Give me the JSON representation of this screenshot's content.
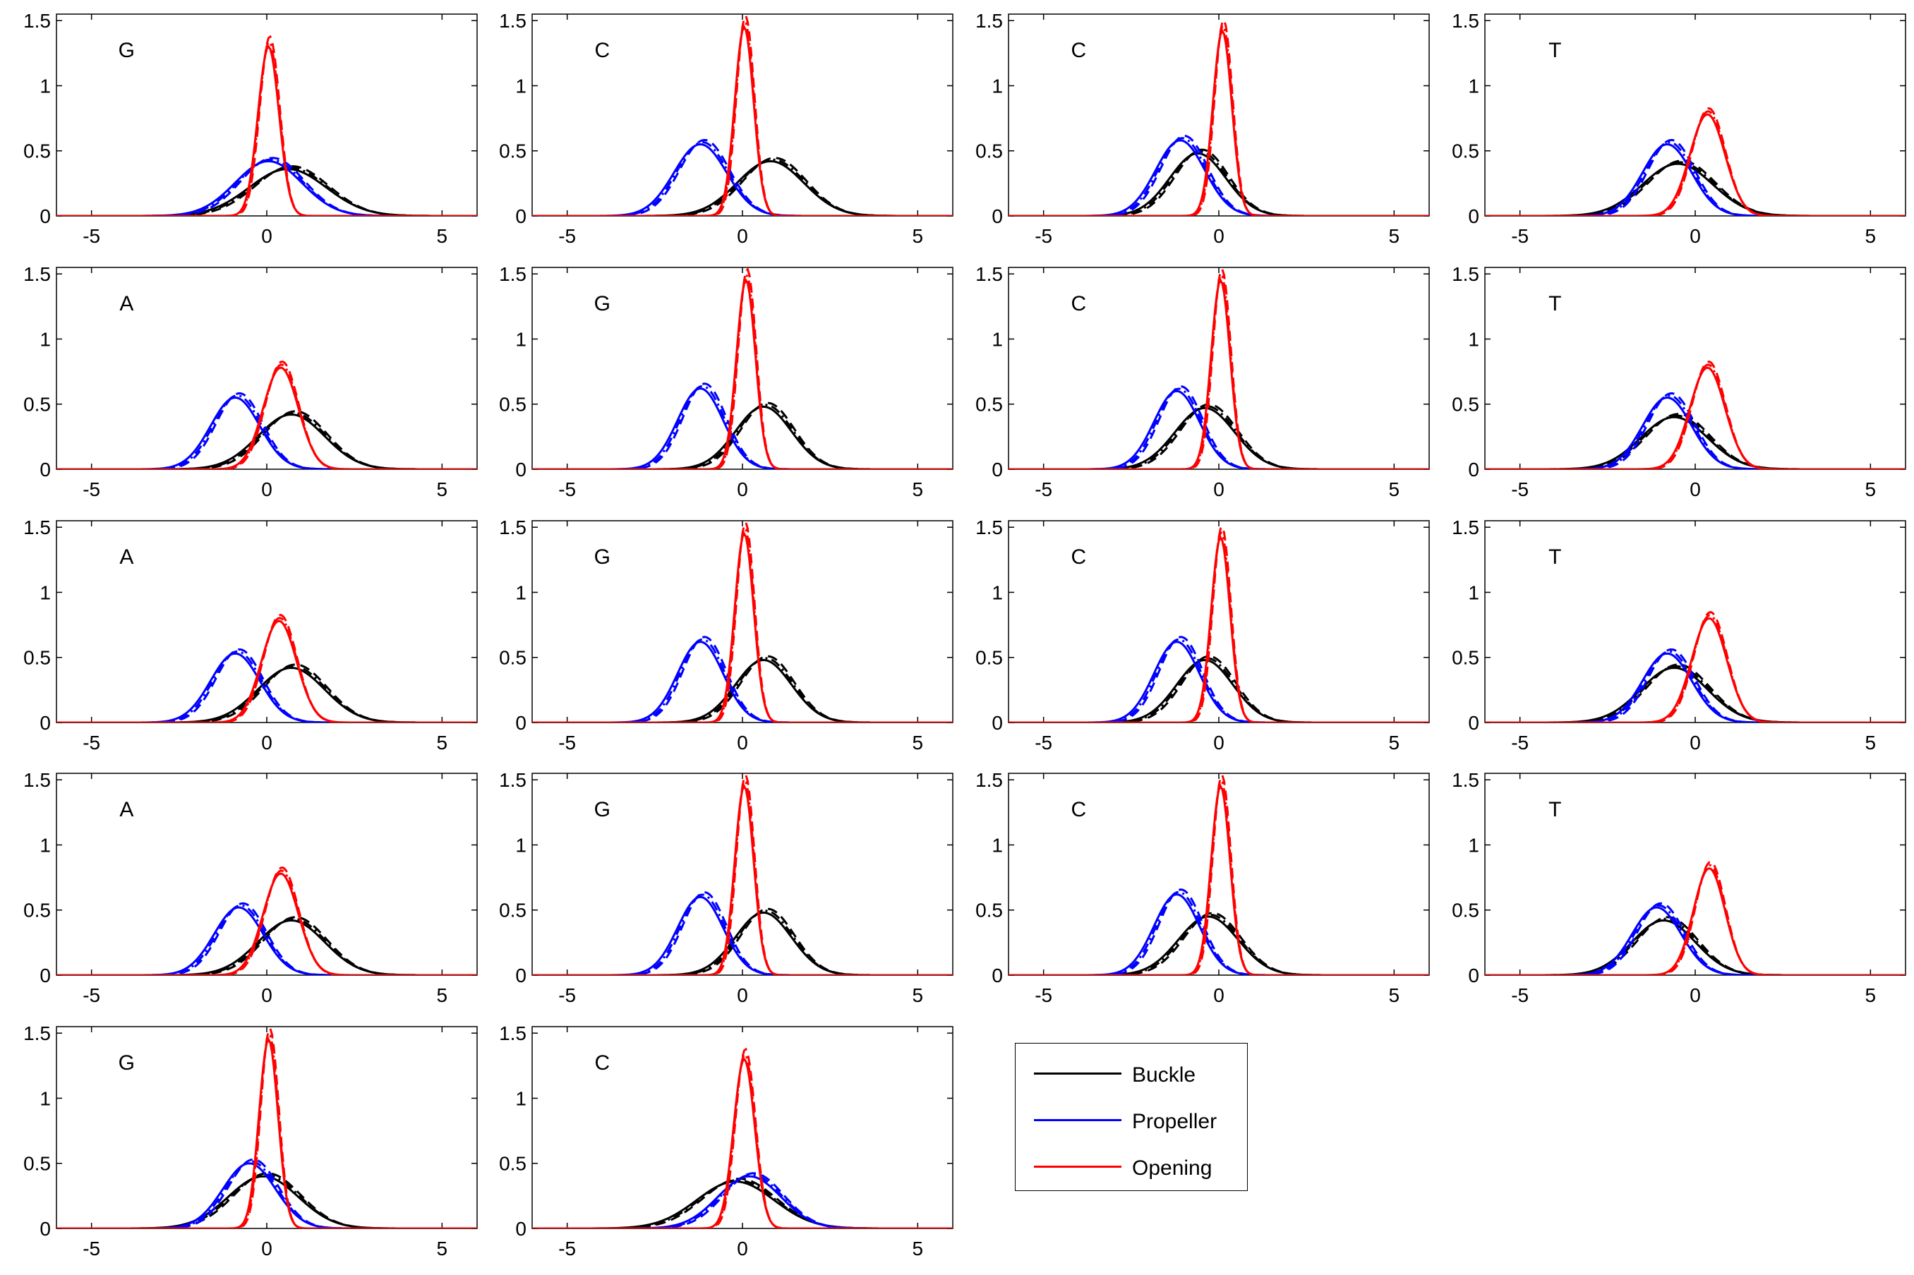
{
  "chart_data": {
    "type": "line",
    "layout": "5x4 grid of small multiples (18 panels) with legend",
    "xlim": [
      -6,
      6
    ],
    "ylim": [
      0,
      1.55
    ],
    "xticks": [
      -5,
      0,
      5
    ],
    "yticks": [
      0,
      0.5,
      1,
      1.5
    ],
    "ytick_labels": [
      "0",
      "0.5",
      "1",
      "1.5"
    ],
    "grid": false,
    "legend": {
      "position": "row 5, column 3",
      "entries": [
        {
          "label": "Buckle",
          "color": "#000000"
        },
        {
          "label": "Propeller",
          "color": "#0000ff"
        },
        {
          "label": "Opening",
          "color": "#ff0000"
        }
      ]
    },
    "series_styles": [
      "solid",
      "dashed",
      "dash-dot"
    ],
    "panels": [
      {
        "label": "G",
        "buckle": {
          "mu": 0.6,
          "sigma": 1.1,
          "peak": 0.36
        },
        "propeller": {
          "mu": 0.05,
          "sigma": 0.95,
          "peak": 0.42
        },
        "opening": {
          "mu": 0.05,
          "sigma": 0.3,
          "peak": 1.3
        }
      },
      {
        "label": "C",
        "buckle": {
          "mu": 0.8,
          "sigma": 0.95,
          "peak": 0.42
        },
        "propeller": {
          "mu": -1.2,
          "sigma": 0.75,
          "peak": 0.55
        },
        "opening": {
          "mu": 0.05,
          "sigma": 0.27,
          "peak": 1.45
        }
      },
      {
        "label": "C",
        "buckle": {
          "mu": -0.6,
          "sigma": 0.8,
          "peak": 0.48
        },
        "propeller": {
          "mu": -1.1,
          "sigma": 0.7,
          "peak": 0.58
        },
        "opening": {
          "mu": 0.1,
          "sigma": 0.27,
          "peak": 1.42
        }
      },
      {
        "label": "T",
        "buckle": {
          "mu": -0.5,
          "sigma": 1.0,
          "peak": 0.4
        },
        "propeller": {
          "mu": -0.8,
          "sigma": 0.7,
          "peak": 0.55
        },
        "opening": {
          "mu": 0.35,
          "sigma": 0.5,
          "peak": 0.78
        }
      },
      {
        "label": "A",
        "buckle": {
          "mu": 0.7,
          "sigma": 0.95,
          "peak": 0.42
        },
        "propeller": {
          "mu": -0.9,
          "sigma": 0.7,
          "peak": 0.55
        },
        "opening": {
          "mu": 0.4,
          "sigma": 0.5,
          "peak": 0.78
        }
      },
      {
        "label": "G",
        "buckle": {
          "mu": 0.6,
          "sigma": 0.8,
          "peak": 0.48
        },
        "propeller": {
          "mu": -1.2,
          "sigma": 0.65,
          "peak": 0.62
        },
        "opening": {
          "mu": 0.1,
          "sigma": 0.27,
          "peak": 1.45
        }
      },
      {
        "label": "C",
        "buckle": {
          "mu": -0.4,
          "sigma": 0.85,
          "peak": 0.47
        },
        "propeller": {
          "mu": -1.2,
          "sigma": 0.65,
          "peak": 0.6
        },
        "opening": {
          "mu": 0.05,
          "sigma": 0.27,
          "peak": 1.45
        }
      },
      {
        "label": "T",
        "buckle": {
          "mu": -0.6,
          "sigma": 0.95,
          "peak": 0.4
        },
        "propeller": {
          "mu": -0.8,
          "sigma": 0.7,
          "peak": 0.55
        },
        "opening": {
          "mu": 0.35,
          "sigma": 0.5,
          "peak": 0.78
        }
      },
      {
        "label": "A",
        "buckle": {
          "mu": 0.7,
          "sigma": 0.95,
          "peak": 0.42
        },
        "propeller": {
          "mu": -0.9,
          "sigma": 0.7,
          "peak": 0.53
        },
        "opening": {
          "mu": 0.35,
          "sigma": 0.5,
          "peak": 0.78
        }
      },
      {
        "label": "G",
        "buckle": {
          "mu": 0.6,
          "sigma": 0.8,
          "peak": 0.48
        },
        "propeller": {
          "mu": -1.2,
          "sigma": 0.65,
          "peak": 0.62
        },
        "opening": {
          "mu": 0.05,
          "sigma": 0.27,
          "peak": 1.45
        }
      },
      {
        "label": "C",
        "buckle": {
          "mu": -0.4,
          "sigma": 0.8,
          "peak": 0.48
        },
        "propeller": {
          "mu": -1.2,
          "sigma": 0.65,
          "peak": 0.62
        },
        "opening": {
          "mu": 0.05,
          "sigma": 0.27,
          "peak": 1.42
        }
      },
      {
        "label": "T",
        "buckle": {
          "mu": -0.6,
          "sigma": 0.95,
          "peak": 0.42
        },
        "propeller": {
          "mu": -0.8,
          "sigma": 0.7,
          "peak": 0.53
        },
        "opening": {
          "mu": 0.4,
          "sigma": 0.5,
          "peak": 0.8
        }
      },
      {
        "label": "A",
        "buckle": {
          "mu": 0.7,
          "sigma": 0.95,
          "peak": 0.42
        },
        "propeller": {
          "mu": -0.8,
          "sigma": 0.7,
          "peak": 0.52
        },
        "opening": {
          "mu": 0.4,
          "sigma": 0.5,
          "peak": 0.78
        }
      },
      {
        "label": "G",
        "buckle": {
          "mu": 0.6,
          "sigma": 0.8,
          "peak": 0.48
        },
        "propeller": {
          "mu": -1.2,
          "sigma": 0.65,
          "peak": 0.6
        },
        "opening": {
          "mu": 0.05,
          "sigma": 0.27,
          "peak": 1.45
        }
      },
      {
        "label": "C",
        "buckle": {
          "mu": -0.3,
          "sigma": 0.85,
          "peak": 0.45
        },
        "propeller": {
          "mu": -1.2,
          "sigma": 0.65,
          "peak": 0.62
        },
        "opening": {
          "mu": 0.05,
          "sigma": 0.27,
          "peak": 1.45
        }
      },
      {
        "label": "T",
        "buckle": {
          "mu": -0.9,
          "sigma": 0.9,
          "peak": 0.42
        },
        "propeller": {
          "mu": -1.1,
          "sigma": 0.7,
          "peak": 0.52
        },
        "opening": {
          "mu": 0.4,
          "sigma": 0.45,
          "peak": 0.82
        }
      },
      {
        "label": "G",
        "buckle": {
          "mu": -0.1,
          "sigma": 1.0,
          "peak": 0.4
        },
        "propeller": {
          "mu": -0.5,
          "sigma": 0.75,
          "peak": 0.5
        },
        "opening": {
          "mu": 0.05,
          "sigma": 0.27,
          "peak": 1.45
        }
      },
      {
        "label": "C",
        "buckle": {
          "mu": -0.2,
          "sigma": 1.1,
          "peak": 0.36
        },
        "propeller": {
          "mu": 0.2,
          "sigma": 0.9,
          "peak": 0.4
        },
        "opening": {
          "mu": 0.05,
          "sigma": 0.3,
          "peak": 1.3
        }
      }
    ]
  }
}
